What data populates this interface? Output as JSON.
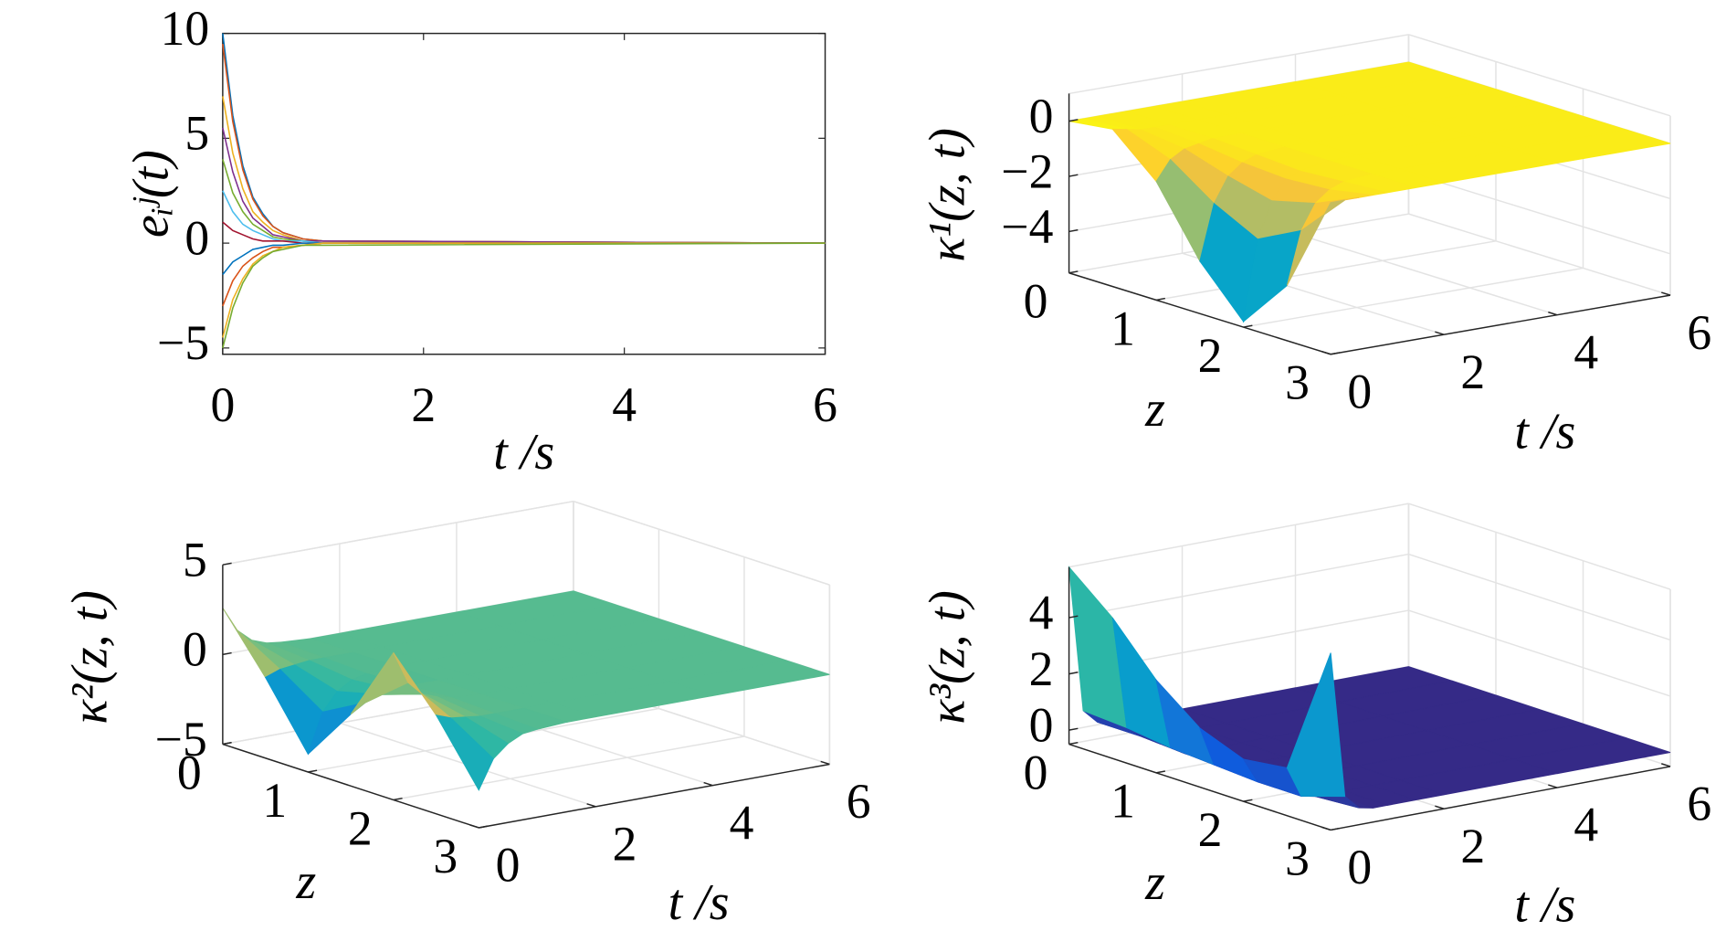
{
  "chart_data": [
    {
      "type": "line",
      "xlabel": "t /s",
      "ylabel": "eᵢʲ(t)",
      "x": [
        0,
        0.1,
        0.2,
        0.3,
        0.4,
        0.5,
        0.6,
        0.8,
        1,
        6
      ],
      "xlim": [
        0,
        6
      ],
      "xticks": [
        0,
        2,
        4,
        6
      ],
      "ylim": [
        -5.3,
        10
      ],
      "yticks": [
        {
          "value": -5,
          "label": "−5"
        },
        0,
        5,
        10
      ],
      "series": [
        {
          "color": "#0072bd",
          "values": [
            10,
            6.1,
            3.7,
            2.2,
            1.4,
            0.8,
            0.5,
            0.2,
            0.1,
            0
          ]
        },
        {
          "color": "#d95319",
          "values": [
            9.5,
            5.8,
            3.5,
            2.1,
            1.3,
            0.8,
            0.5,
            0.2,
            0.1,
            0
          ]
        },
        {
          "color": "#edb120",
          "values": [
            7,
            4.3,
            2.6,
            1.5,
            1,
            0.6,
            0.4,
            0.1,
            0.1,
            0
          ]
        },
        {
          "color": "#7e2f8e",
          "values": [
            5.5,
            3.4,
            2,
            1.2,
            0.8,
            0.4,
            0.3,
            0.1,
            0.1,
            0
          ]
        },
        {
          "color": "#77ac30",
          "values": [
            4,
            2.4,
            1.5,
            0.9,
            0.6,
            0.3,
            0.2,
            0.1,
            0,
            0
          ]
        },
        {
          "color": "#4dbeee",
          "values": [
            2.5,
            1.5,
            0.9,
            0.6,
            0.4,
            0.2,
            0.1,
            0.1,
            0,
            0
          ]
        },
        {
          "color": "#a2142f",
          "values": [
            1,
            0.6,
            0.4,
            0.2,
            0.1,
            0.1,
            0.1,
            0,
            0,
            0
          ]
        },
        {
          "color": "#0072bd",
          "values": [
            -1.5,
            -0.9,
            -0.6,
            -0.3,
            -0.2,
            -0.1,
            -0.1,
            0,
            0,
            0
          ]
        },
        {
          "color": "#d95319",
          "values": [
            -3,
            -1.8,
            -1.1,
            -0.7,
            -0.4,
            -0.2,
            -0.2,
            -0.1,
            0,
            0
          ]
        },
        {
          "color": "#edb120",
          "values": [
            -4.5,
            -2.7,
            -1.7,
            -1,
            -0.6,
            -0.4,
            -0.2,
            -0.1,
            0,
            0
          ]
        },
        {
          "color": "#77ac30",
          "values": [
            -5,
            -3.1,
            -1.9,
            -1.1,
            -0.7,
            -0.4,
            -0.3,
            -0.1,
            -0.1,
            0
          ]
        }
      ]
    },
    {
      "type": "surface",
      "xlabel": "z",
      "ylabel": "t /s",
      "zlabel": "κ¹(z, t)",
      "x": [
        0,
        0.5,
        1,
        1.5,
        2,
        2.5,
        3
      ],
      "y": [
        0,
        0.25,
        0.5,
        0.75,
        1,
        1.5,
        2,
        4,
        6
      ],
      "xlim": [
        0,
        3
      ],
      "xticks": [
        0,
        1,
        2,
        3
      ],
      "ylim": [
        0,
        6
      ],
      "yticks": [
        0,
        2,
        4,
        6
      ],
      "zlim": [
        -5.5,
        1
      ],
      "zticks": [
        {
          "value": -4,
          "label": "−4"
        },
        {
          "value": -2,
          "label": "−2"
        },
        0
      ],
      "colormap": [
        "#352a87",
        "#0f5cdd",
        "#1481d6",
        "#06a4ca",
        "#2eb7a4",
        "#87bf77",
        "#d1bb59",
        "#fec832",
        "#f9fb0e"
      ],
      "values": [
        [
          0,
          0.2,
          -1.2,
          -3.6,
          -5.3,
          -3.5,
          0
        ],
        [
          0,
          0.1,
          -0.5,
          -1.6,
          -2.4,
          -1.6,
          0
        ],
        [
          0,
          0,
          -0.2,
          -0.7,
          -1.1,
          -0.7,
          0
        ],
        [
          0,
          0,
          -0.1,
          -0.3,
          -0.4,
          -0.3,
          0
        ],
        [
          0,
          0,
          0,
          -0.1,
          -0.2,
          -0.1,
          0
        ],
        [
          0,
          0,
          0,
          0,
          0,
          0,
          0
        ],
        [
          0,
          0,
          0,
          0,
          0,
          0,
          0
        ],
        [
          0,
          0,
          0,
          0,
          0,
          0,
          0
        ],
        [
          0,
          0,
          0,
          0,
          0,
          0,
          0
        ]
      ]
    },
    {
      "type": "surface",
      "xlabel": "z",
      "ylabel": "t /s",
      "zlabel": "κ²(z, t)",
      "x": [
        0,
        0.5,
        1,
        1.5,
        2,
        2.5,
        3
      ],
      "y": [
        0,
        0.25,
        0.5,
        0.75,
        1,
        1.5,
        2,
        4,
        6
      ],
      "xlim": [
        0,
        3
      ],
      "xticks": [
        0,
        1,
        2,
        3
      ],
      "ylim": [
        0,
        6
      ],
      "yticks": [
        0,
        2,
        4,
        6
      ],
      "zlim": [
        -5,
        5
      ],
      "zticks": [
        {
          "value": -5,
          "label": "−5"
        },
        0,
        5
      ],
      "colormap": [
        "#352a87",
        "#0f5cdd",
        "#1481d6",
        "#06a4ca",
        "#2eb7a4",
        "#87bf77",
        "#d1bb59",
        "#fec832",
        "#f9fb0e"
      ],
      "values": [
        [
          2.6,
          -0.5,
          -4,
          -1,
          3.2,
          0.5,
          -2.9
        ],
        [
          1.2,
          -0.2,
          -1.8,
          -0.5,
          1.4,
          0.2,
          -1.3
        ],
        [
          0.5,
          -0.1,
          -0.8,
          -0.2,
          0.6,
          0.1,
          -0.6
        ],
        [
          0.2,
          0,
          -0.3,
          -0.1,
          0.3,
          0,
          -0.2
        ],
        [
          0.1,
          0,
          -0.1,
          0,
          0.1,
          0,
          -0.1
        ],
        [
          0,
          0,
          0,
          0,
          0,
          0,
          0
        ],
        [
          0,
          0,
          0,
          0,
          0,
          0,
          0
        ],
        [
          0,
          0,
          0,
          0,
          0,
          0,
          0
        ],
        [
          0,
          0,
          0,
          0,
          0,
          0,
          0
        ]
      ]
    },
    {
      "type": "surface",
      "xlabel": "z",
      "ylabel": "t /s",
      "zlabel": "κ³(z, t)",
      "x": [
        0,
        0.5,
        1,
        1.5,
        2,
        2.5,
        3
      ],
      "y": [
        0,
        0.25,
        0.5,
        0.75,
        1,
        1.5,
        2,
        4,
        6
      ],
      "xlim": [
        0,
        3
      ],
      "xticks": [
        0,
        1,
        2,
        3
      ],
      "ylim": [
        0,
        6
      ],
      "yticks": [
        0,
        2,
        4,
        6
      ],
      "zlim": [
        -0.5,
        5.8
      ],
      "zticks": [
        0,
        2,
        4
      ],
      "colormap": [
        "#352a87",
        "#0f5cdd",
        "#1481d6",
        "#06a4ca",
        "#2eb7a4",
        "#87bf77",
        "#d1bb59",
        "#fec832",
        "#f9fb0e"
      ],
      "values": [
        [
          5.8,
          4.5,
          2.8,
          1.6,
          1,
          1.2,
          5.8
        ],
        [
          0.6,
          0.5,
          0.3,
          0.2,
          0.1,
          0.1,
          0.6
        ],
        [
          0.1,
          0.1,
          0,
          0,
          0,
          0,
          0.1
        ],
        [
          0,
          0,
          0,
          0,
          0,
          0,
          0
        ],
        [
          0,
          0,
          0,
          0,
          0,
          0,
          0
        ],
        [
          0,
          0,
          0,
          0,
          0,
          0,
          0
        ],
        [
          0,
          0,
          0,
          0,
          0,
          0,
          0
        ],
        [
          0,
          0,
          0,
          0,
          0,
          0,
          0
        ],
        [
          0,
          0,
          0,
          0,
          0,
          0,
          0
        ]
      ]
    }
  ]
}
